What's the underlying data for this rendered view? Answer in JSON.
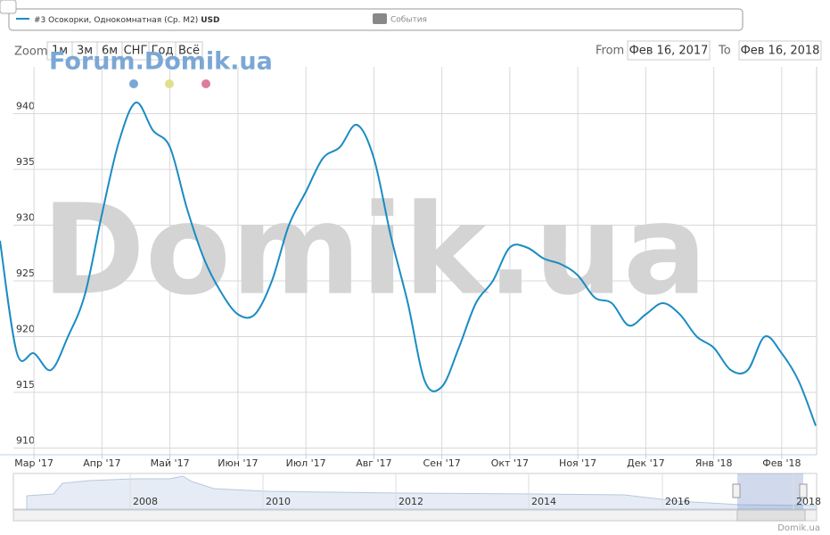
{
  "legend": {
    "events": "События"
  },
  "range_selector": {
    "label": "Zoom",
    "buttons": [
      "1м",
      "3м",
      "6м",
      "СНГ",
      "Год",
      "Всё"
    ]
  },
  "date_range": {
    "from_label": "From",
    "from": "Фев 16, 2017",
    "to_label": "To",
    "to": "Фев 16, 2018"
  },
  "watermarks": {
    "forum": "Forum.Domik.ua",
    "main": "Domik.ua"
  },
  "chart_data": {
    "type": "line",
    "categories": [
      null,
      null,
      "Мар '17",
      null,
      null,
      null,
      "Апр '17",
      null,
      null,
      null,
      "Май '17",
      null,
      null,
      null,
      "Июн '17",
      null,
      null,
      null,
      "Июл '17",
      null,
      null,
      null,
      "Авг '17",
      null,
      null,
      null,
      "Сен '17",
      null,
      null,
      null,
      "Окт '17",
      null,
      null,
      null,
      "Ноя '17",
      null,
      null,
      null,
      "Дек '17",
      null,
      null,
      null,
      "Янв '18",
      null,
      null,
      null,
      "Фев '18",
      null,
      null
    ],
    "series": [
      {
        "name": "#3 Осокорки, Однокомнатная (Ср. М2)",
        "unit": "USD",
        "color": "#1a8cc3",
        "values": [
          928.6,
          918.5,
          918.5,
          917,
          920,
          923.8,
          931,
          937.5,
          941,
          938.5,
          937,
          931.5,
          927,
          924,
          922,
          922,
          925,
          930,
          933,
          936,
          937,
          939,
          936,
          929,
          923,
          916,
          915.5,
          919,
          923,
          925,
          928,
          928,
          927,
          926.5,
          925.5,
          923.5,
          923,
          921,
          922,
          923,
          922,
          920,
          919,
          917,
          917,
          920,
          918.5,
          916,
          912
        ]
      }
    ],
    "ylim": [
      909.4,
      944.2
    ],
    "yticks": [
      910,
      915,
      920,
      925,
      930,
      935,
      940
    ],
    "grid": true
  },
  "navigator": {
    "labels": [
      "2008",
      "2010",
      "2012",
      "2014",
      "2016",
      "2018"
    ]
  },
  "credit": "Domik.ua"
}
